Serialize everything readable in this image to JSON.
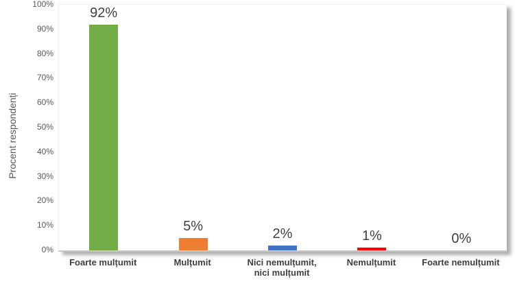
{
  "chart_data": {
    "type": "bar",
    "title": "",
    "xlabel": "",
    "ylabel": "Procent respondenți",
    "categories": [
      "Foarte mulțumit",
      "Mulțumit",
      "Nici nemulțumit, nici mulțumit",
      "Nemulțumit",
      "Foarte nemulțumit"
    ],
    "values": [
      92,
      5,
      2,
      1,
      0
    ],
    "data_labels": [
      "92%",
      "5%",
      "2%",
      "1%",
      "0%"
    ],
    "bar_colors": [
      "#70AD47",
      "#ED7D31",
      "#4472C4",
      "#FF0000",
      null
    ],
    "ylim": [
      0,
      100
    ],
    "ytick_labels": [
      "0%",
      "10%",
      "20%",
      "30%",
      "40%",
      "50%",
      "60%",
      "70%",
      "80%",
      "90%",
      "100%"
    ],
    "grid": false,
    "legend": "none",
    "axis_text_color": "#595959",
    "label_text_color": "#404040"
  }
}
